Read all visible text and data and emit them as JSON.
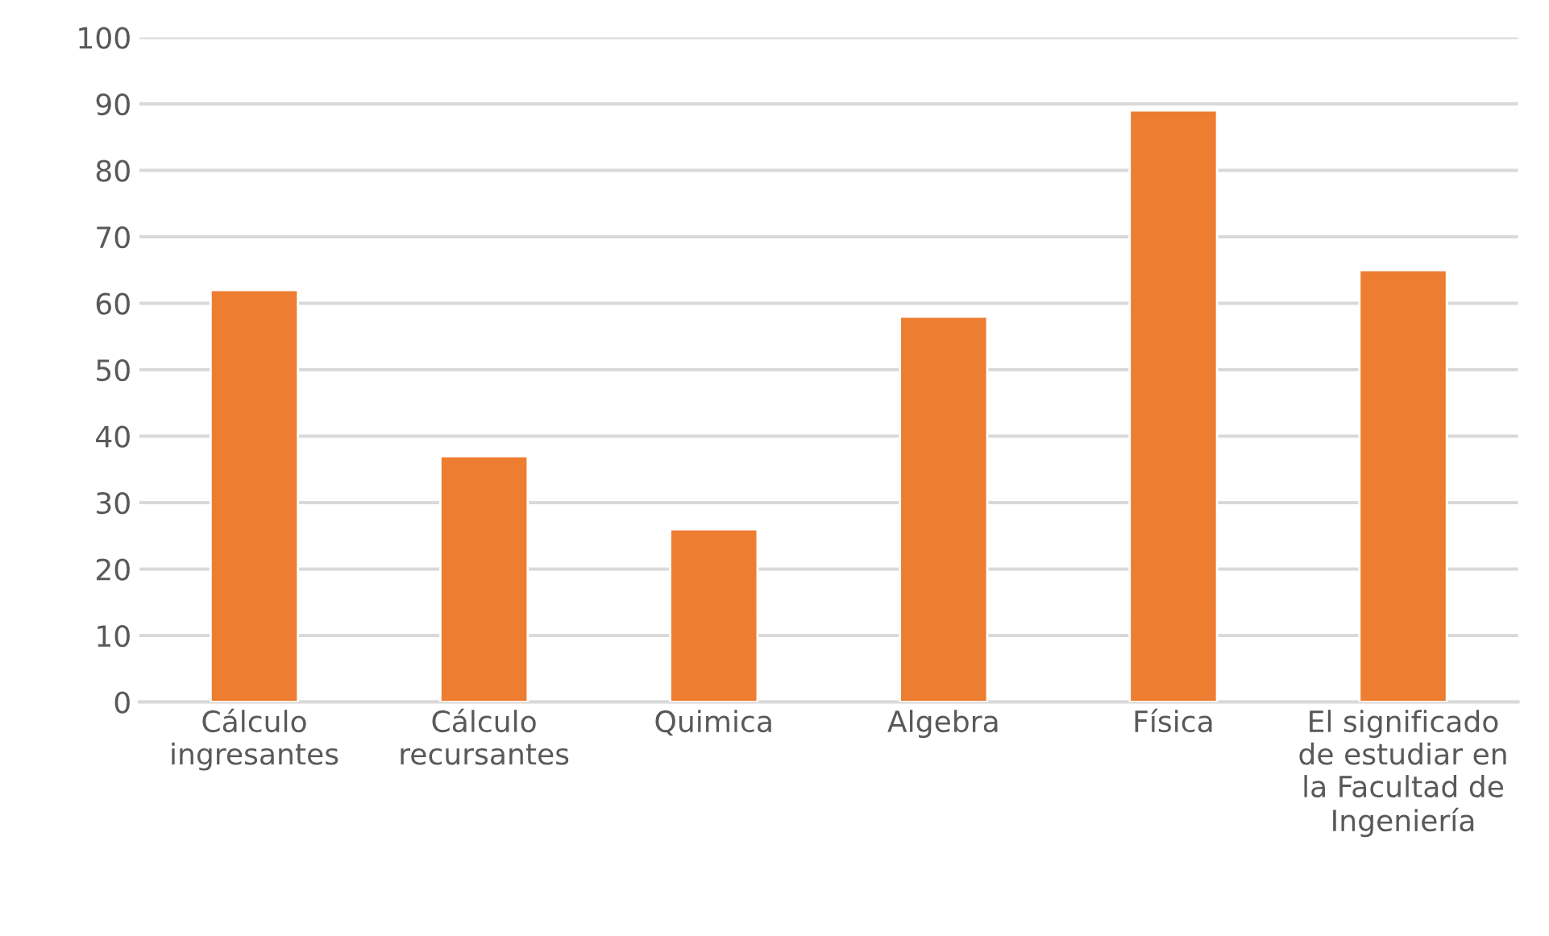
{
  "chart_data": {
    "type": "bar",
    "categories": [
      "Cálculo ingresantes",
      "Cálculo recursantes",
      "Quimica",
      "Algebra",
      "Física",
      "El significado de estudiar en la Facultad de Ingeniería"
    ],
    "values": [
      62,
      37,
      26,
      58,
      89,
      65
    ],
    "color": "#ed7d31",
    "ylim": [
      0,
      100
    ],
    "yticks": [
      0,
      10,
      20,
      30,
      40,
      50,
      60,
      70,
      80,
      90,
      100
    ],
    "grid": "y",
    "legend": false
  }
}
